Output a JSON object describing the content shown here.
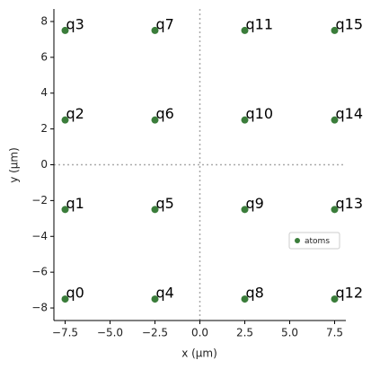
{
  "chart_data": {
    "type": "scatter",
    "xlabel": "x (μm)",
    "ylabel": "y (μm)",
    "x": [
      -7.5,
      -7.5,
      -7.5,
      -7.5,
      -2.5,
      -2.5,
      -2.5,
      -2.5,
      2.5,
      2.5,
      2.5,
      2.5,
      7.5,
      7.5,
      7.5,
      7.5
    ],
    "series": [
      {
        "name": "atoms",
        "color": "#3a7d3a",
        "values": [
          -7.5,
          -2.5,
          2.5,
          7.5,
          -7.5,
          -2.5,
          2.5,
          7.5,
          -7.5,
          -2.5,
          2.5,
          7.5,
          -7.5,
          -2.5,
          2.5,
          7.5
        ],
        "labels": [
          "q0",
          "q1",
          "q2",
          "q3",
          "q4",
          "q5",
          "q6",
          "q7",
          "q8",
          "q9",
          "q10",
          "q11",
          "q12",
          "q13",
          "q14",
          "q15"
        ]
      }
    ],
    "xlim": [
      -8.125,
      8.125
    ],
    "ylim": [
      -8.7,
      8.7
    ],
    "xticks": [
      {
        "value": -7.5,
        "label": "−7.5"
      },
      {
        "value": -5,
        "label": "−5.0"
      },
      {
        "value": -2.5,
        "label": "−2.5"
      },
      {
        "value": 0,
        "label": "0.0"
      },
      {
        "value": 2.5,
        "label": "2.5"
      },
      {
        "value": 5,
        "label": "5.0"
      },
      {
        "value": 7.5,
        "label": "7.5"
      }
    ],
    "yticks": [
      {
        "value": -8,
        "label": "−8"
      },
      {
        "value": -6,
        "label": "−6"
      },
      {
        "value": -4,
        "label": "−4"
      },
      {
        "value": -2,
        "label": "−2"
      },
      0,
      2,
      4,
      6,
      8
    ],
    "hline": 0,
    "vline": 0,
    "legend": "lower right"
  }
}
